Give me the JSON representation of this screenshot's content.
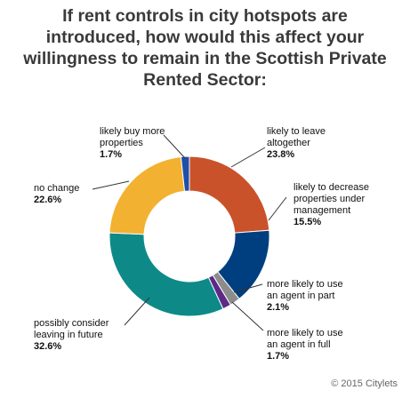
{
  "chart_data": {
    "type": "pie",
    "title_lines": [
      "If rent controls in city hotspots are",
      "introduced, how would this affect your",
      "willingness to remain in the Scottish Private",
      "Rented Sector:"
    ],
    "slices": [
      {
        "label_lines": [
          "likely to leave",
          "altogether"
        ],
        "value": 23.8,
        "value_label": "23.8%",
        "color": "#c9522a"
      },
      {
        "label_lines": [
          "likely to decrease",
          "properties under",
          "management"
        ],
        "value": 15.5,
        "value_label": "15.5%",
        "color": "#003f7f"
      },
      {
        "label_lines": [
          "more likely to use",
          "an agent in part"
        ],
        "value": 2.1,
        "value_label": "2.1%",
        "color": "#8c8c8c"
      },
      {
        "label_lines": [
          "more likely to use",
          "an agent in full"
        ],
        "value": 1.7,
        "value_label": "1.7%",
        "color": "#5c2a86"
      },
      {
        "label_lines": [
          "possibly consider",
          "leaving in future"
        ],
        "value": 32.6,
        "value_label": "32.6%",
        "color": "#0d8a88"
      },
      {
        "label_lines": [
          "no change"
        ],
        "value": 22.6,
        "value_label": "22.6%",
        "color": "#f2b130"
      },
      {
        "label_lines": [
          "likely buy more",
          "properties"
        ],
        "value": 1.7,
        "value_label": "1.7%",
        "color": "#1f4fa8"
      }
    ]
  },
  "credit": "© 2015 Citylets"
}
